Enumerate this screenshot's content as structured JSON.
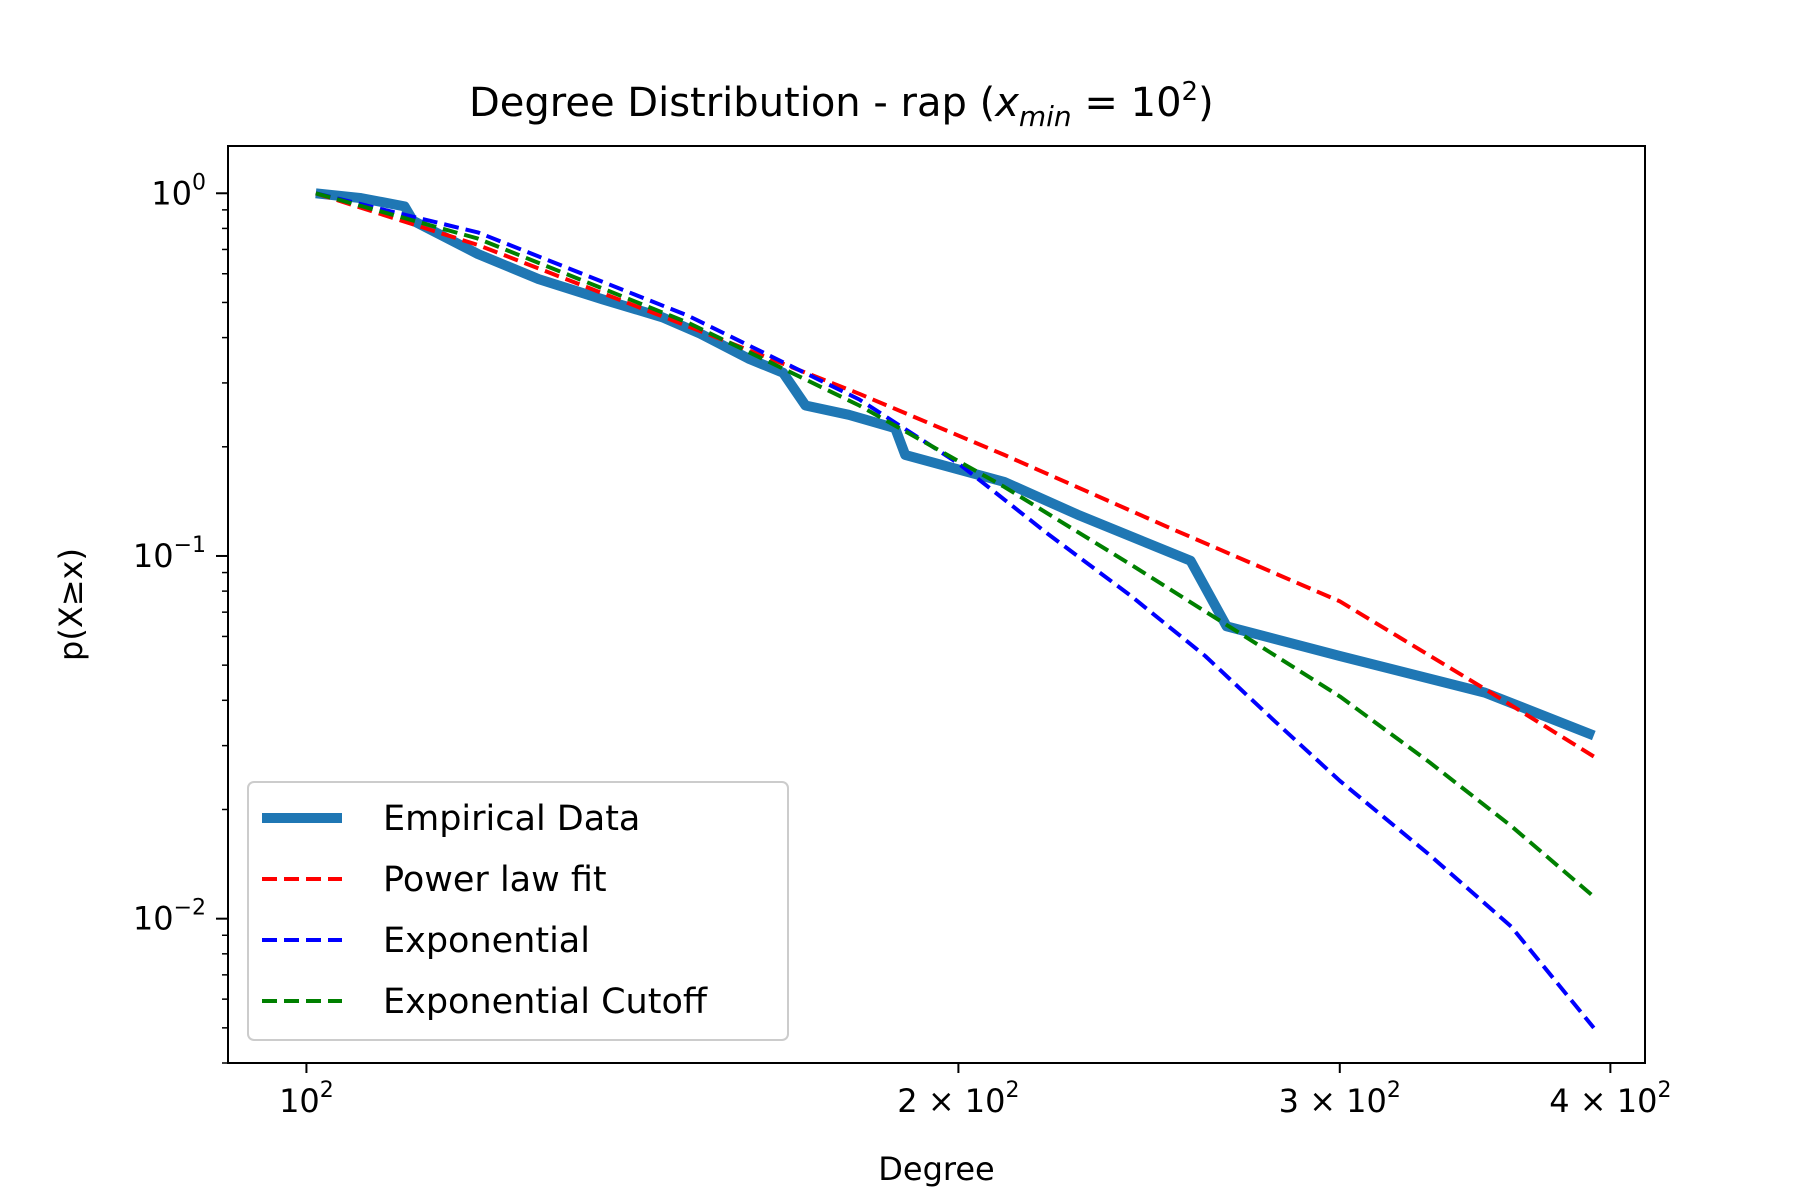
{
  "chart_data": {
    "type": "line",
    "title_prefix": "Degree Distribution - rap (",
    "title_var": "x",
    "title_sub": "min",
    "title_eq": " = 10",
    "title_sup": "2",
    "title_suffix": ")",
    "xlabel": "Degree",
    "ylabel": "p(X≥x)",
    "xscale": "log",
    "yscale": "log",
    "xlim": [
      92,
      415
    ],
    "ylim": [
      0.004,
      1.35
    ],
    "x_ticks": [
      {
        "value": 100,
        "mantissa": "",
        "base": "10",
        "exp": "2"
      },
      {
        "value": 200,
        "mantissa": "2 × ",
        "base": "10",
        "exp": "2"
      },
      {
        "value": 300,
        "mantissa": "3 × ",
        "base": "10",
        "exp": "2"
      },
      {
        "value": 400,
        "mantissa": "4 × ",
        "base": "10",
        "exp": "2"
      }
    ],
    "y_ticks": [
      {
        "value": 1,
        "base": "10",
        "exp": "0"
      },
      {
        "value": 0.1,
        "base": "10",
        "exp": "−1"
      },
      {
        "value": 0.01,
        "base": "10",
        "exp": "−2"
      }
    ],
    "legend_position": "lower-left",
    "series": [
      {
        "name": "Empirical Data",
        "color": "#1f77b4",
        "style": "solid",
        "x": [
          101,
          106,
          111,
          112,
          120,
          128,
          137,
          146,
          152,
          160,
          166,
          170,
          178,
          187,
          189,
          210,
          227,
          256,
          266,
          300,
          350,
          393
        ],
        "y": [
          1.0,
          0.97,
          0.92,
          0.84,
          0.68,
          0.58,
          0.51,
          0.455,
          0.41,
          0.35,
          0.32,
          0.26,
          0.245,
          0.225,
          0.19,
          0.16,
          0.13,
          0.097,
          0.064,
          0.053,
          0.042,
          0.032
        ]
      },
      {
        "name": "Power law fit",
        "color": "#ff0000",
        "style": "dashed",
        "x": [
          101,
          120,
          150,
          180,
          210,
          250,
          300,
          350,
          393
        ],
        "y": [
          1.0,
          0.72,
          0.43,
          0.28,
          0.19,
          0.12,
          0.075,
          0.043,
          0.028
        ]
      },
      {
        "name": "Exponential",
        "color": "#0000ff",
        "style": "dashed",
        "x": [
          101,
          120,
          150,
          180,
          200,
          220,
          240,
          260,
          280,
          300,
          330,
          360,
          393
        ],
        "y": [
          1.0,
          0.78,
          0.46,
          0.27,
          0.18,
          0.115,
          0.078,
          0.053,
          0.035,
          0.024,
          0.015,
          0.0095,
          0.005
        ]
      },
      {
        "name": "Exponential Cutoff",
        "color": "#008000",
        "style": "dashed",
        "x": [
          101,
          120,
          150,
          180,
          210,
          240,
          270,
          300,
          330,
          360,
          393
        ],
        "y": [
          1.0,
          0.75,
          0.44,
          0.26,
          0.155,
          0.095,
          0.061,
          0.041,
          0.027,
          0.018,
          0.0115
        ]
      }
    ]
  }
}
